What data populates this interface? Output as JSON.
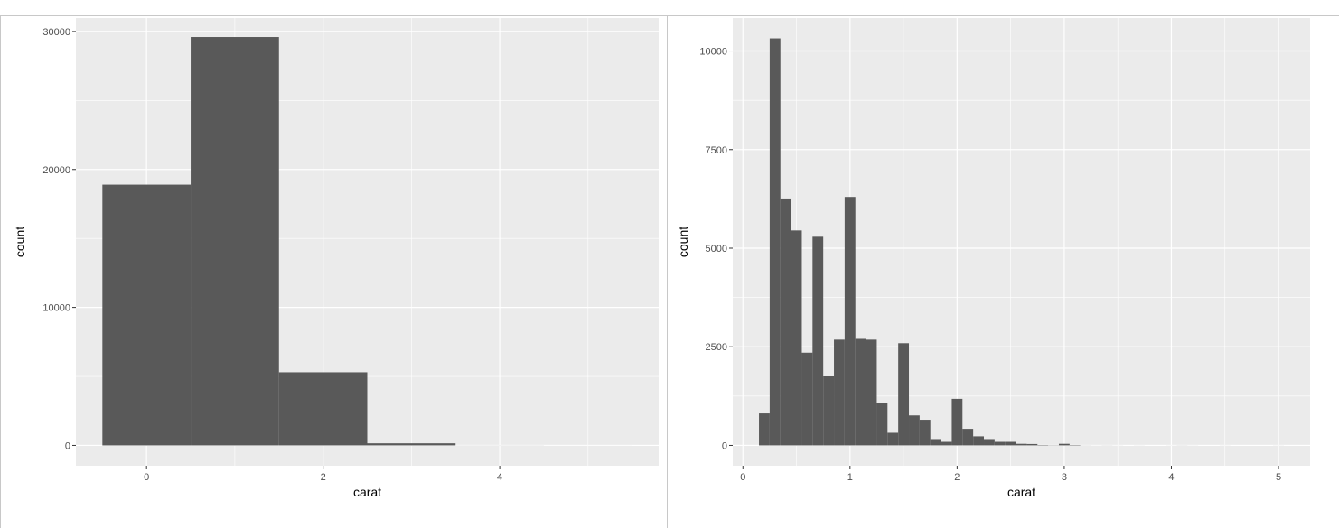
{
  "chart_data": [
    {
      "type": "histogram",
      "x_label": "carat",
      "y_label": "count",
      "bins": [
        -0.5,
        0.5,
        1.5,
        2.5,
        3.5,
        4.5,
        5.5
      ],
      "values": [
        18900,
        29600,
        5300,
        150,
        5,
        1
      ],
      "color": "#595959",
      "xlim": [
        -0.8,
        5.8
      ],
      "xticks": [
        0,
        2,
        4
      ],
      "ylim": [
        -1475,
        30975
      ],
      "yticks": [
        0,
        10000,
        20000,
        30000
      ],
      "grid": true
    },
    {
      "type": "histogram",
      "x_label": "carat",
      "y_label": "count",
      "bins": [
        0.15,
        0.25,
        0.35,
        0.45,
        0.55,
        0.65,
        0.75,
        0.85,
        0.95,
        1.05,
        1.15,
        1.25,
        1.35,
        1.45,
        1.55,
        1.65,
        1.75,
        1.85,
        1.95,
        2.05,
        2.15,
        2.25,
        2.35,
        2.45,
        2.55,
        2.65,
        2.75,
        2.85,
        2.95,
        3.05,
        3.15,
        3.25,
        3.35,
        3.45,
        3.55,
        3.65,
        3.75,
        3.85,
        3.95,
        4.05,
        4.15,
        4.25,
        4.35,
        4.45,
        4.55,
        4.65,
        4.75,
        4.85,
        4.95,
        5.05
      ],
      "values": [
        810,
        10320,
        6260,
        5450,
        2350,
        5290,
        1750,
        2680,
        6300,
        2700,
        2680,
        1080,
        320,
        2590,
        760,
        650,
        160,
        90,
        1180,
        420,
        230,
        160,
        90,
        90,
        40,
        35,
        10,
        5,
        40,
        10,
        2,
        1,
        2,
        1,
        0,
        1,
        0,
        0,
        1,
        2,
        1,
        0,
        0,
        1,
        0,
        0,
        0,
        0,
        1
      ],
      "color": "#595959",
      "xlim": [
        -0.095,
        5.295
      ],
      "xticks": [
        0,
        1,
        2,
        3,
        4,
        5
      ],
      "ylim": [
        -516,
        10836
      ],
      "yticks": [
        0,
        2500,
        5000,
        7500,
        10000
      ],
      "grid": true
    }
  ]
}
